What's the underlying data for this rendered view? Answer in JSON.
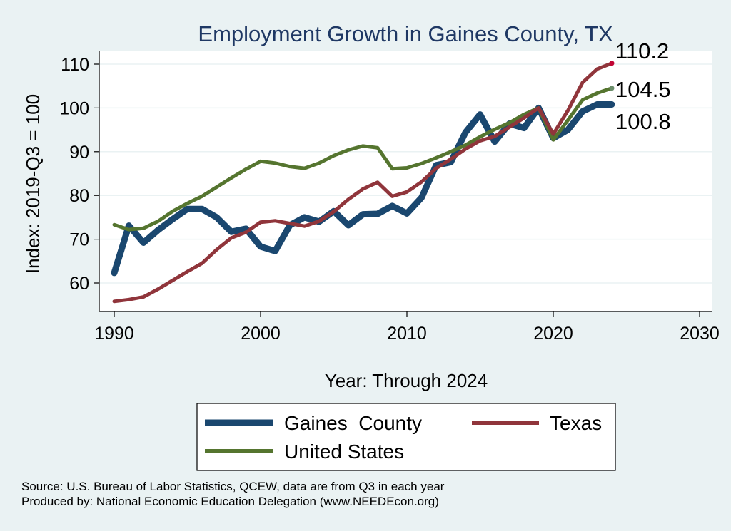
{
  "chart_data": {
    "type": "line",
    "title": "Employment Growth in Gaines County, TX",
    "xlabel": "Year: Through 2024",
    "ylabel": "Index: 2019-Q3 = 100",
    "xlim": [
      1990,
      2030
    ],
    "ylim": [
      53,
      113
    ],
    "xticks": [
      1990,
      2000,
      2010,
      2020,
      2030
    ],
    "yticks": [
      60,
      70,
      80,
      90,
      100,
      110
    ],
    "grid": "horizontal",
    "legend_position": "bottom",
    "x": [
      1990,
      1991,
      1992,
      1993,
      1994,
      1995,
      1996,
      1997,
      1998,
      1999,
      2000,
      2001,
      2002,
      2003,
      2004,
      2005,
      2006,
      2007,
      2008,
      2009,
      2010,
      2011,
      2012,
      2013,
      2014,
      2015,
      2016,
      2017,
      2018,
      2019,
      2020,
      2021,
      2022,
      2023,
      2024
    ],
    "series": [
      {
        "name": "Gaines  County",
        "color": "#1a476f",
        "values": [
          62.3,
          73.1,
          69.2,
          72.1,
          74.6,
          76.9,
          76.9,
          75.0,
          71.7,
          72.4,
          68.3,
          67.3,
          73.2,
          75.0,
          74.0,
          76.4,
          73.2,
          75.7,
          75.8,
          77.6,
          75.9,
          79.5,
          86.9,
          87.6,
          94.4,
          98.5,
          92.3,
          96.4,
          95.4,
          100.0,
          93.1,
          95.0,
          99.2,
          100.8,
          100.8
        ],
        "end_label": "100.8"
      },
      {
        "name": "Texas",
        "color": "#90353b",
        "values": [
          55.8,
          56.2,
          56.8,
          58.6,
          60.6,
          62.6,
          64.5,
          67.6,
          70.3,
          71.6,
          73.9,
          74.2,
          73.6,
          73.0,
          74.1,
          76.3,
          79.1,
          81.5,
          83.0,
          79.8,
          80.8,
          83.1,
          86.2,
          88.3,
          90.6,
          92.5,
          93.5,
          95.6,
          97.7,
          100.0,
          94.0,
          99.4,
          105.8,
          108.9,
          110.2
        ],
        "end_label": "110.2"
      },
      {
        "name": "United States",
        "color": "#55752f",
        "values": [
          73.3,
          72.2,
          72.5,
          74.1,
          76.4,
          78.2,
          79.8,
          81.9,
          84.0,
          86.0,
          87.8,
          87.4,
          86.6,
          86.2,
          87.4,
          89.1,
          90.4,
          91.3,
          90.9,
          86.1,
          86.3,
          87.3,
          88.6,
          90.0,
          91.5,
          93.4,
          95.1,
          96.6,
          98.5,
          100.0,
          92.7,
          97.2,
          101.8,
          103.4,
          104.5
        ],
        "end_label": "104.5"
      }
    ],
    "end_dot_colors": [
      "#1a476f",
      "#c10534",
      "#6b8e6b"
    ]
  },
  "legend": {
    "items": [
      "Gaines  County",
      "Texas",
      "United States"
    ]
  },
  "source": {
    "line1": "Source: U.S. Bureau of Labor Statistics, QCEW, data are from Q3 in each year",
    "line2": "Produced by: National Economic Education Delegation (www.NEEDEcon.org)"
  }
}
